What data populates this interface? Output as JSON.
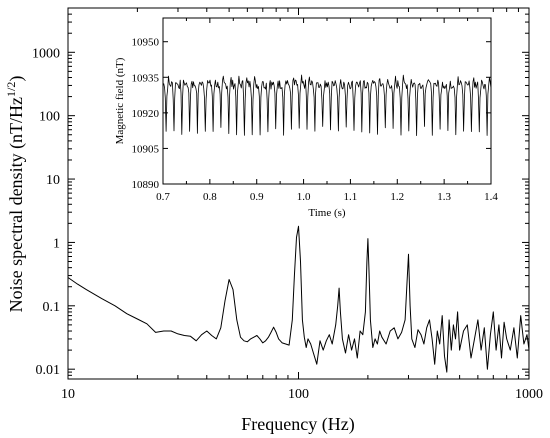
{
  "chart_data": [
    {
      "type": "line",
      "panel": "main",
      "xlabel": "Frequency (Hz)",
      "ylabel_main": "Noise spectral density (nT/Hz",
      "ylabel_sup": "1/2",
      "ylabel_close": ")",
      "xscale": "log",
      "yscale": "log",
      "xlim": [
        10,
        1000
      ],
      "ylim": [
        0.007,
        5000
      ],
      "xticks": [
        {
          "v": 10,
          "label": "10"
        },
        {
          "v": 100,
          "label": "100"
        },
        {
          "v": 1000,
          "label": "1000"
        }
      ],
      "yticks": [
        {
          "v": 0.01,
          "label": "0.01"
        },
        {
          "v": 0.1,
          "label": "0.1"
        },
        {
          "v": 1,
          "label": "1"
        },
        {
          "v": 10,
          "label": "10"
        },
        {
          "v": 100,
          "label": "100"
        },
        {
          "v": 1000,
          "label": "1000"
        }
      ],
      "series": [
        {
          "color": "#000000",
          "x": [
            10,
            11,
            12,
            14,
            16,
            18,
            20,
            22,
            24,
            26,
            28,
            30,
            32,
            34,
            36,
            38,
            40,
            42,
            44,
            46,
            48,
            50,
            52,
            54,
            56,
            58,
            60,
            62,
            64,
            66,
            68,
            70,
            72,
            74,
            76,
            78,
            80,
            82,
            85,
            88,
            91,
            94,
            96,
            98,
            100,
            102,
            104,
            106,
            108,
            110,
            113,
            116,
            120,
            124,
            128,
            132,
            136,
            140,
            145,
            148,
            150,
            152,
            155,
            160,
            165,
            170,
            175,
            180,
            185,
            190,
            195,
            198,
            200,
            202,
            205,
            210,
            215,
            220,
            225,
            230,
            240,
            250,
            260,
            270,
            280,
            290,
            295,
            300,
            305,
            310,
            320,
            330,
            340,
            350,
            360,
            370,
            380,
            390,
            400,
            410,
            420,
            430,
            440,
            450,
            460,
            470,
            480,
            490,
            500,
            520,
            540,
            560,
            580,
            600,
            620,
            640,
            660,
            680,
            700,
            720,
            740,
            760,
            780,
            800,
            830,
            860,
            890,
            920,
            950,
            980,
            1000
          ],
          "y": [
            0.28,
            0.22,
            0.18,
            0.13,
            0.1,
            0.075,
            0.062,
            0.052,
            0.038,
            0.04,
            0.04,
            0.036,
            0.034,
            0.033,
            0.028,
            0.035,
            0.04,
            0.034,
            0.03,
            0.045,
            0.12,
            0.26,
            0.18,
            0.06,
            0.032,
            0.028,
            0.027,
            0.03,
            0.032,
            0.034,
            0.03,
            0.026,
            0.028,
            0.032,
            0.038,
            0.046,
            0.038,
            0.03,
            0.026,
            0.025,
            0.024,
            0.06,
            0.3,
            1.2,
            1.8,
            0.5,
            0.06,
            0.032,
            0.022,
            0.03,
            0.025,
            0.018,
            0.012,
            0.028,
            0.02,
            0.028,
            0.035,
            0.025,
            0.05,
            0.1,
            0.19,
            0.08,
            0.03,
            0.018,
            0.035,
            0.02,
            0.03,
            0.015,
            0.04,
            0.035,
            0.08,
            0.5,
            1.15,
            0.4,
            0.06,
            0.022,
            0.03,
            0.025,
            0.04,
            0.032,
            0.025,
            0.04,
            0.045,
            0.03,
            0.038,
            0.06,
            0.2,
            0.65,
            0.1,
            0.03,
            0.022,
            0.042,
            0.035,
            0.025,
            0.045,
            0.06,
            0.03,
            0.012,
            0.04,
            0.025,
            0.07,
            0.016,
            0.009,
            0.06,
            0.02,
            0.05,
            0.03,
            0.08,
            0.02,
            0.04,
            0.05,
            0.015,
            0.03,
            0.06,
            0.02,
            0.045,
            0.01,
            0.035,
            0.08,
            0.02,
            0.05,
            0.015,
            0.055,
            0.03,
            0.02,
            0.045,
            0.015,
            0.07,
            0.025,
            0.035,
            0.02
          ]
        }
      ]
    },
    {
      "type": "line",
      "panel": "inset",
      "xlabel": "Time (s)",
      "ylabel": "Magnetic field (nT)",
      "xlim": [
        0.7,
        1.4
      ],
      "ylim": [
        10890,
        10960
      ],
      "xticks": [
        0.7,
        0.8,
        0.9,
        1.0,
        1.1,
        1.2,
        1.3,
        1.4
      ],
      "xtick_labels": [
        "0.7",
        "0.8",
        "0.9",
        "1.0",
        "1.1",
        "1.2",
        "1.3",
        "1.4"
      ],
      "yticks": [
        10890,
        10905,
        10920,
        10935,
        10950
      ],
      "ytick_labels": [
        "10890",
        "10905",
        "10920",
        "10935",
        "10950"
      ],
      "signal": {
        "baseline": 10932,
        "ripple": 2,
        "dip_min": 10912,
        "period_s": 0.0167,
        "points_per_period": 10
      }
    }
  ]
}
